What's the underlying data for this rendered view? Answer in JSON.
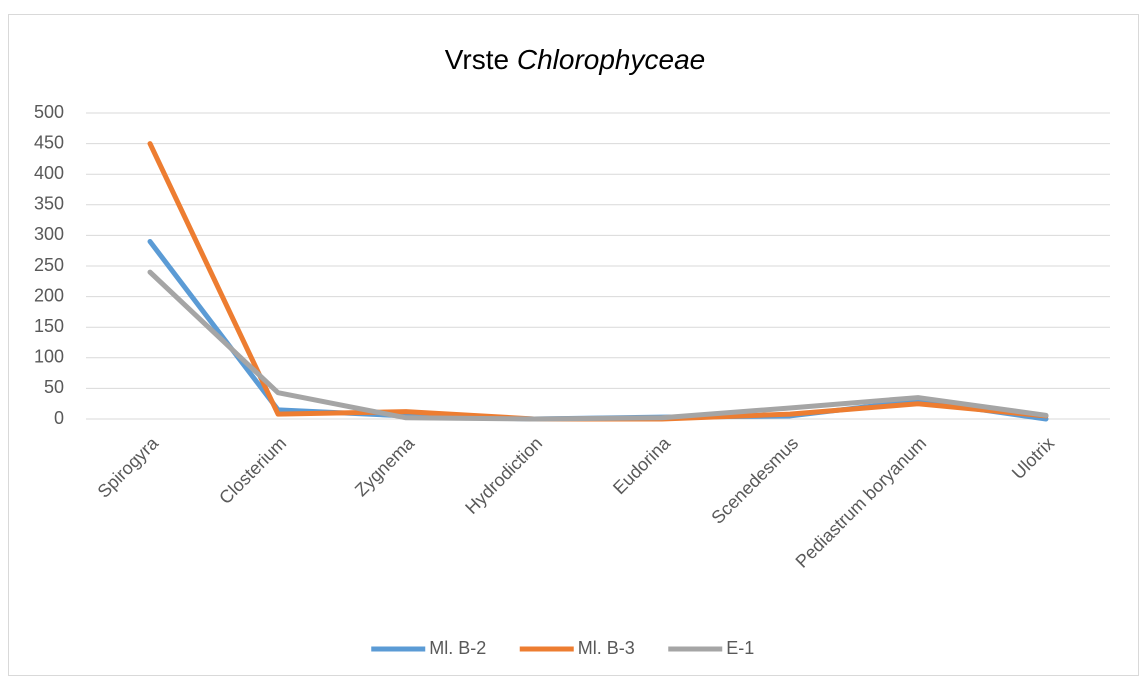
{
  "chart_data": {
    "type": "line",
    "title": "Vrste Chlorophyceae",
    "categories": [
      "Spirogyra",
      "Closterium",
      "Zygnema",
      "Hydrodiction",
      "Eudorina",
      "Scenedesmus",
      "Pediastrum boryanum",
      "Ulotrix"
    ],
    "series": [
      {
        "name": "Ml. B-2",
        "color": "#5b9bd5",
        "values": [
          290,
          15,
          5,
          0,
          3,
          5,
          30,
          0
        ]
      },
      {
        "name": "Ml. B-3",
        "color": "#ed7d31",
        "values": [
          450,
          8,
          12,
          0,
          0,
          8,
          25,
          5
        ]
      },
      {
        "name": "E-1",
        "color": "#a5a5a5",
        "values": [
          240,
          43,
          2,
          0,
          2,
          18,
          35,
          6
        ]
      }
    ],
    "ylim": [
      0,
      500
    ],
    "yticks": [
      0,
      50,
      100,
      150,
      200,
      250,
      300,
      350,
      400,
      450,
      500
    ],
    "grid": true,
    "legend": "bottom"
  }
}
